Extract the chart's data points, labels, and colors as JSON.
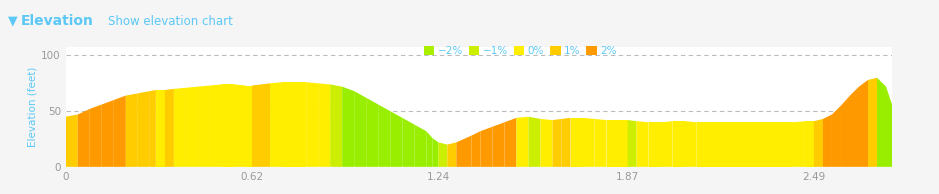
{
  "title_arrow": "▼",
  "title": "Elevation",
  "subtitle": "Show elevation chart",
  "ylabel": "Elevation (feet)",
  "yticks": [
    0,
    50,
    100
  ],
  "xticks": [
    0,
    0.62,
    1.24,
    1.87,
    2.49
  ],
  "xtick_labels": [
    "0",
    "0.62",
    "1.24",
    "1.87",
    "2.49"
  ],
  "xlim": [
    0,
    2.75
  ],
  "ylim": [
    0,
    108
  ],
  "background_color": "#f5f5f5",
  "plot_bg": "#ffffff",
  "header_bg": "#f0f0f0",
  "grid_color": "#bbbbbb",
  "title_color": "#5bc8f5",
  "ylabel_color": "#5bc8f5",
  "tick_color": "#999999",
  "legend_labels": [
    "−2%",
    "−1%",
    "0%",
    "1%",
    "2%"
  ],
  "legend_colors": [
    "#aaee00",
    "#ccee00",
    "#ffee00",
    "#ffcc00",
    "#ff9900"
  ],
  "elevation_x": [
    0.0,
    0.04,
    0.08,
    0.12,
    0.16,
    0.2,
    0.24,
    0.28,
    0.3,
    0.33,
    0.36,
    0.4,
    0.44,
    0.48,
    0.52,
    0.56,
    0.6,
    0.62,
    0.65,
    0.68,
    0.72,
    0.76,
    0.8,
    0.84,
    0.88,
    0.92,
    0.96,
    1.0,
    1.04,
    1.08,
    1.12,
    1.16,
    1.2,
    1.22,
    1.24,
    1.27,
    1.3,
    1.35,
    1.38,
    1.42,
    1.46,
    1.5,
    1.54,
    1.58,
    1.62,
    1.65,
    1.68,
    1.72,
    1.76,
    1.8,
    1.84,
    1.87,
    1.9,
    1.94,
    1.98,
    2.02,
    2.06,
    2.1,
    2.14,
    2.18,
    2.22,
    2.26,
    2.3,
    2.34,
    2.38,
    2.42,
    2.46,
    2.49,
    2.52,
    2.55,
    2.58,
    2.61,
    2.64,
    2.67,
    2.7,
    2.73,
    2.75
  ],
  "elevation_y": [
    45,
    47,
    52,
    56,
    60,
    64,
    66,
    68,
    69,
    69,
    70,
    71,
    72,
    73,
    74,
    74,
    73,
    73,
    74,
    75,
    76,
    76,
    76,
    75,
    74,
    72,
    68,
    62,
    56,
    50,
    44,
    38,
    32,
    26,
    22,
    20,
    22,
    28,
    32,
    36,
    40,
    44,
    45,
    43,
    42,
    43,
    44,
    44,
    43,
    42,
    42,
    42,
    41,
    40,
    40,
    41,
    41,
    40,
    40,
    40,
    40,
    40,
    40,
    40,
    40,
    40,
    41,
    41,
    43,
    47,
    55,
    64,
    72,
    78,
    80,
    72,
    56
  ],
  "grade_thresholds": [
    -1.5,
    -0.5,
    0.5,
    1.5
  ],
  "grade_colors": [
    "#99ee00",
    "#ccee00",
    "#ffee00",
    "#ffcc00",
    "#ff9900"
  ]
}
